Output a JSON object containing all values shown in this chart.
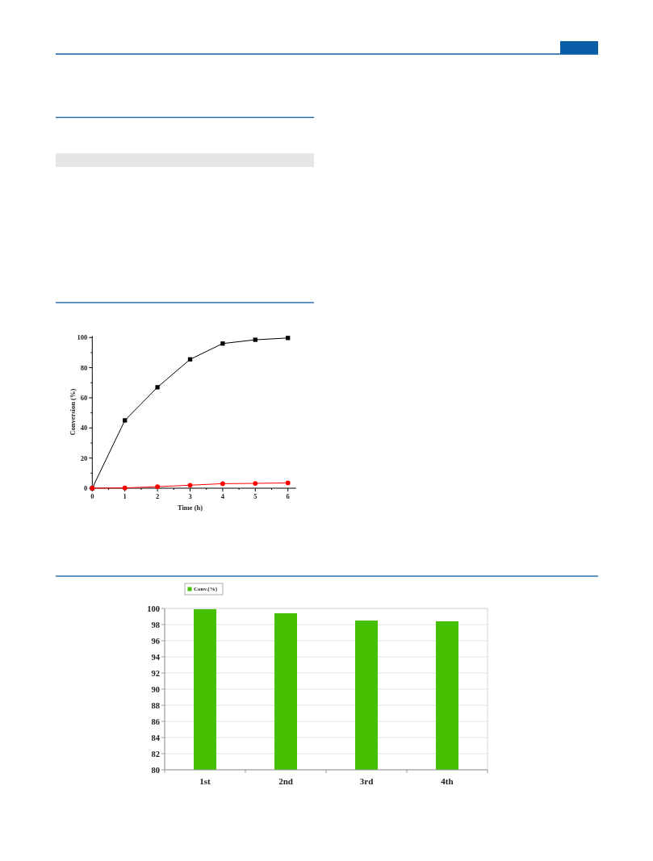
{
  "chart_data": [
    {
      "type": "line",
      "xlabel": "Time (h)",
      "ylabel": "Conversion (%)",
      "x": [
        0,
        1,
        2,
        3,
        4,
        5,
        6
      ],
      "series": [
        {
          "color": "#000000",
          "marker": "square",
          "values": [
            0,
            45,
            67,
            85.5,
            96,
            98.5,
            99.7
          ]
        },
        {
          "color": "#ff0000",
          "marker": "circle",
          "values": [
            0,
            0.2,
            1,
            2,
            3,
            3.2,
            3.5
          ]
        }
      ],
      "xlim": [
        0,
        6.25
      ],
      "xticks": [
        0,
        {
          "value": 0.5,
          "label": null
        },
        1,
        {
          "value": 1.5,
          "label": null
        },
        2,
        {
          "value": 2.5,
          "label": null
        },
        3,
        {
          "value": 3.5,
          "label": null
        },
        4,
        {
          "value": 4.5,
          "label": null
        },
        5,
        {
          "value": 5.5,
          "label": null
        },
        6
      ],
      "ylim": [
        0,
        101
      ],
      "yticks": [
        0,
        {
          "value": 10,
          "label": null
        },
        20,
        {
          "value": 30,
          "label": null
        },
        40,
        {
          "value": 50,
          "label": null
        },
        60,
        {
          "value": 70,
          "label": null
        },
        80,
        {
          "value": 90,
          "label": null
        },
        100
      ]
    },
    {
      "type": "bar",
      "categories": [
        "1st",
        "2nd",
        "3rd",
        "4th"
      ],
      "series": [
        {
          "name": "Conv.(%)",
          "color": "#44c000",
          "values": [
            99.9,
            99.4,
            98.5,
            98.4
          ]
        }
      ],
      "ylim": [
        80,
        100
      ],
      "yticks": [
        80,
        82,
        84,
        86,
        88,
        90,
        92,
        94,
        96,
        98,
        100
      ],
      "grid": "y",
      "legend": "top left"
    }
  ]
}
